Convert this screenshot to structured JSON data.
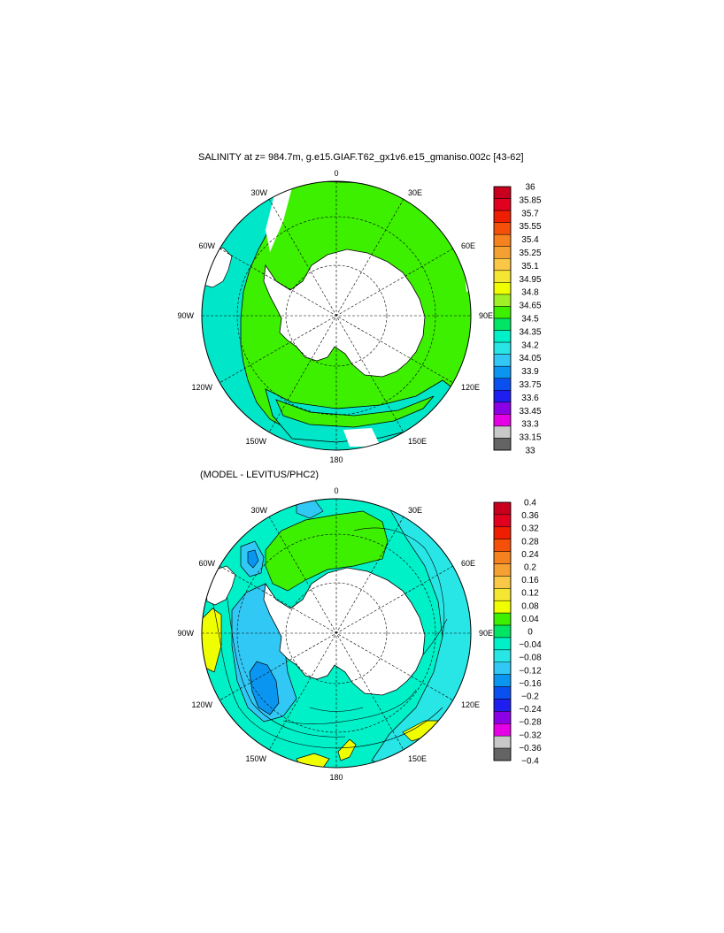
{
  "panels": [
    {
      "title": "SALINITY at z= 984.7m, g.e15.GIAF.T62_gx1v6.e15_gmaniso.002c [43-62]",
      "map_labels": {
        "top": "0",
        "bottom": "180",
        "left": "90W",
        "right": "90E",
        "ul1": "30W",
        "ul2": "60W",
        "ur1": "30E",
        "ur2": "60E",
        "ll1": "120W",
        "ll2": "150W",
        "lr1": "120E",
        "lr2": "150E"
      },
      "colorbar": {
        "labels": [
          "36",
          "35.85",
          "35.7",
          "35.55",
          "35.4",
          "35.25",
          "35.1",
          "34.95",
          "34.8",
          "34.65",
          "34.5",
          "34.35",
          "34.2",
          "34.05",
          "33.9",
          "33.75",
          "33.6",
          "33.45",
          "33.3",
          "33.15",
          "33"
        ],
        "colors": [
          "#c8001e",
          "#e1001e",
          "#f01e00",
          "#f5500a",
          "#f5821e",
          "#f5a032",
          "#fac846",
          "#f5e632",
          "#f0ff00",
          "#a0f028",
          "#3cf000",
          "#00e664",
          "#00f0c8",
          "#28e6e6",
          "#32c8f5",
          "#0a96f0",
          "#0a50f0",
          "#1e1ef0",
          "#8c00e6",
          "#e600e6",
          "#c8c8c8",
          "#646464"
        ],
        "colors_note": "colors ordered top to bottom"
      }
    },
    {
      "title": "(MODEL - LEVITUS/PHC2)",
      "map_labels": {
        "top": "0",
        "bottom": "180",
        "left": "90W",
        "right": "90E",
        "ul1": "30W",
        "ul2": "60W",
        "ur1": "30E",
        "ur2": "60E",
        "ll1": "120W",
        "ll2": "150W",
        "lr1": "120E",
        "lr2": "150E"
      },
      "colorbar": {
        "labels": [
          "0.4",
          "0.36",
          "0.32",
          "0.28",
          "0.24",
          "0.2",
          "0.16",
          "0.12",
          "0.08",
          "0.04",
          "0",
          "−0.04",
          "−0.08",
          "−0.12",
          "−0.16",
          "−0.2",
          "−0.24",
          "−0.28",
          "−0.32",
          "−0.36",
          "−0.4"
        ],
        "colors": [
          "#c8001e",
          "#e1001e",
          "#f01e00",
          "#f5500a",
          "#f5821e",
          "#f5a032",
          "#fac846",
          "#f5e632",
          "#f0ff00",
          "#3cf000",
          "#00e664",
          "#00f0c8",
          "#28e6e6",
          "#32c8f5",
          "#0a96f0",
          "#0a50f0",
          "#1e1ef0",
          "#8c00e6",
          "#e600e6",
          "#c8c8c8",
          "#646464"
        ]
      }
    }
  ],
  "colors": {
    "ocean_green": "#3cf000",
    "ocean_cyan": "#00e6c8",
    "ocean_teal": "#28e6e6",
    "ocean_blue": "#32c8f5",
    "ocean_darkblue": "#0a96f0",
    "ocean_yellow": "#f0ff00",
    "land": "#ffffff"
  }
}
